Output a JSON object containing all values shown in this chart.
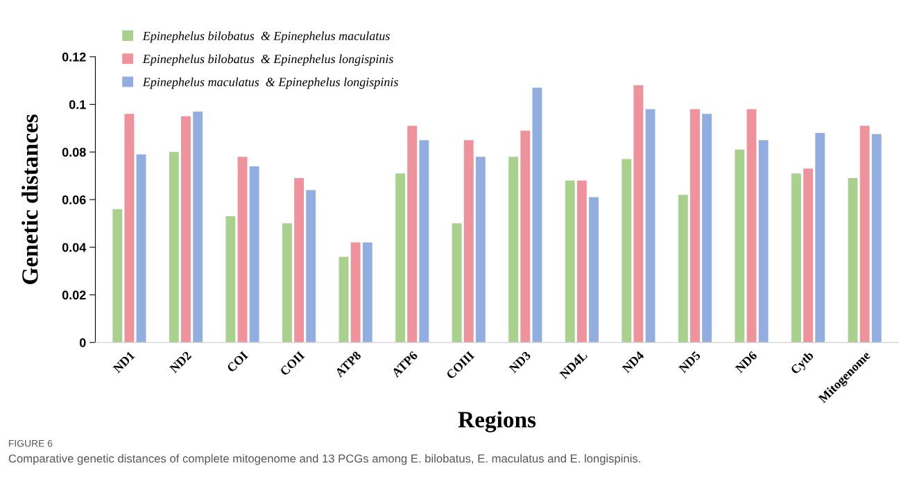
{
  "chart_data": {
    "type": "bar",
    "xlabel": "Regions",
    "ylabel": "Genetic distances",
    "categories": [
      "ND1",
      "ND2",
      "COI",
      "COII",
      "ATP8",
      "ATP6",
      "COIII",
      "ND3",
      "ND4L",
      "ND4",
      "ND5",
      "ND6",
      "Cytb",
      "Mitogenome"
    ],
    "series": [
      {
        "name": "Epinephelus bilobatus  & Epinephelus maculatus",
        "color": "#a9d18e",
        "values": [
          0.056,
          0.08,
          0.053,
          0.05,
          0.036,
          0.071,
          0.05,
          0.078,
          0.068,
          0.077,
          0.062,
          0.081,
          0.071,
          0.069
        ]
      },
      {
        "name": "Epinephelus bilobatus  & Epinephelus longispinis",
        "color": "#ee929b",
        "values": [
          0.096,
          0.095,
          0.078,
          0.069,
          0.042,
          0.091,
          0.085,
          0.089,
          0.068,
          0.108,
          0.098,
          0.098,
          0.073,
          0.091
        ]
      },
      {
        "name": "Epinephelus maculatus  & Epinephelus longispinis",
        "color": "#92aee0",
        "values": [
          0.079,
          0.097,
          0.074,
          0.064,
          0.042,
          0.085,
          0.078,
          0.107,
          0.061,
          0.098,
          0.096,
          0.085,
          0.088,
          0.0875
        ]
      }
    ],
    "ylim": [
      0,
      0.12
    ],
    "yticks": [
      0,
      0.02,
      0.04,
      0.06,
      0.08,
      0.1,
      0.12
    ],
    "grid": false,
    "legend": "top left",
    "annotations": [
      "FIGURE 6",
      "Comparative genetic distances of complete mitogenome and 13 PCGs among E. bilobatus, E. maculatus and E. longispinis."
    ]
  }
}
